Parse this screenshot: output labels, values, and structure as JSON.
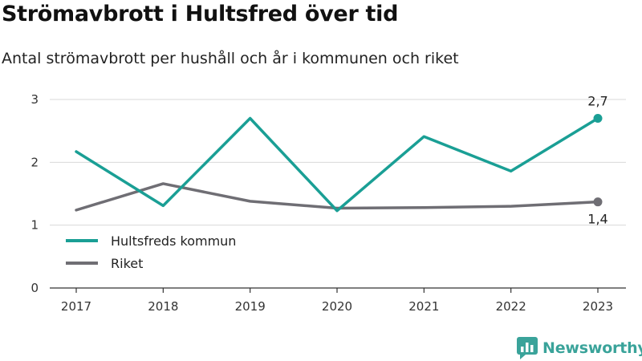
{
  "header": {
    "title": "Strömavbrott i Hultsfred över tid",
    "subtitle": "Antal strömavbrott per hushåll och år i kommunen och riket"
  },
  "brand": {
    "name": "Newsworthy",
    "icon": "newsworthy-logo-icon",
    "color": "#3aa39a"
  },
  "chart_data": {
    "type": "line",
    "title": "Strömavbrott i Hultsfred över tid",
    "subtitle": "Antal strömavbrott per hushåll och år i kommunen och riket",
    "x": [
      "2017",
      "2018",
      "2019",
      "2020",
      "2021",
      "2022",
      "2023"
    ],
    "xlabel": "",
    "ylabel": "",
    "ylim": [
      0,
      3
    ],
    "yticks": [
      "0",
      "1",
      "2",
      "3"
    ],
    "grid": true,
    "legend": "bottom-left",
    "series": [
      {
        "name": "Hultsfreds kommun",
        "color": "#1a9f95",
        "values": [
          2.17,
          1.31,
          2.7,
          1.23,
          2.41,
          1.86,
          2.7
        ],
        "end_label": "2,7"
      },
      {
        "name": "Riket",
        "color": "#6f6e74",
        "values": [
          1.24,
          1.66,
          1.38,
          1.27,
          1.28,
          1.3,
          1.37
        ],
        "end_label": "1,4"
      }
    ]
  }
}
